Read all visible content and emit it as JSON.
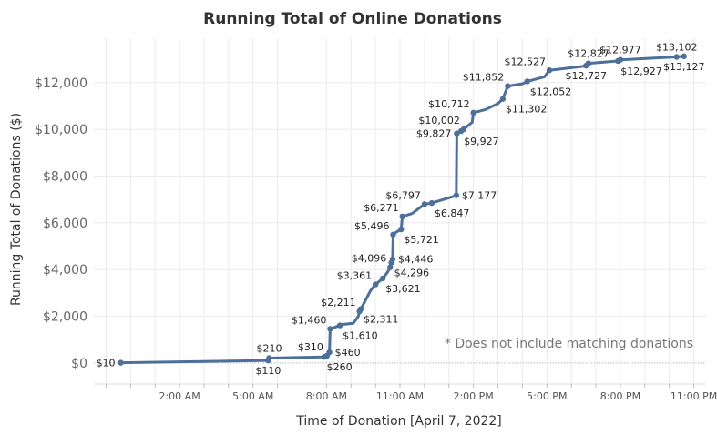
{
  "chart_data": {
    "type": "line",
    "title": "Running Total of Online Donations",
    "xlabel": "Time of Donation [April 7, 2022]",
    "ylabel": "Running Total of Donations ($)",
    "note": "* Does not include matching donations",
    "ylim": [
      -900,
      13900
    ],
    "xlim": [
      -1.5,
      23.5
    ],
    "x_ticks": [
      {
        "x": 2,
        "label": "2:00 AM"
      },
      {
        "x": 5,
        "label": "5:00 AM"
      },
      {
        "x": 8,
        "label": "8:00 AM"
      },
      {
        "x": 11,
        "label": "11:00 AM"
      },
      {
        "x": 14,
        "label": "2:00 PM"
      },
      {
        "x": 17,
        "label": "5:00 PM"
      },
      {
        "x": 20,
        "label": "8:00 PM"
      },
      {
        "x": 23,
        "label": "11:00 PM"
      }
    ],
    "y_ticks": [
      {
        "y": 0,
        "label": "$0"
      },
      {
        "y": 2000,
        "label": "$2,000"
      },
      {
        "y": 4000,
        "label": "$4,000"
      },
      {
        "y": 6000,
        "label": "$6,000"
      },
      {
        "y": 8000,
        "label": "$8,000"
      },
      {
        "y": 10000,
        "label": "$10,000"
      },
      {
        "y": 12000,
        "label": "$12,000"
      }
    ],
    "grid": true,
    "color": "#4e6f9a",
    "series": [
      {
        "points": [
          {
            "x": -0.4,
            "y": 10,
            "label": "$10",
            "lpos": "left"
          },
          {
            "x": 5.62,
            "y": 110,
            "label": "$110",
            "lpos": "below"
          },
          {
            "x": 5.66,
            "y": 210,
            "label": "$210",
            "lpos": "above"
          },
          {
            "x": 7.9,
            "y": 260,
            "label": "$260",
            "lpos": "below-right"
          },
          {
            "x": 8.02,
            "y": 310,
            "label": "$310",
            "lpos": "above-left"
          },
          {
            "x": 8.12,
            "y": 460,
            "label": "$460",
            "lpos": "right"
          },
          {
            "x": 8.15,
            "y": 1460,
            "label": "$1,460",
            "lpos": "above-left"
          },
          {
            "x": 8.55,
            "y": 1610,
            "label": "$1,610",
            "lpos": "below-right"
          },
          {
            "x": 8.65,
            "y": 1650,
            "label": "",
            "lpos": "none"
          },
          {
            "x": 9.1,
            "y": 1700,
            "label": "",
            "lpos": "none"
          },
          {
            "x": 9.3,
            "y": 2000,
            "label": "",
            "lpos": "none"
          },
          {
            "x": 9.35,
            "y": 2211,
            "label": "$2,211",
            "lpos": "above-left"
          },
          {
            "x": 9.4,
            "y": 2311,
            "label": "$2,311",
            "lpos": "below-right"
          },
          {
            "x": 9.6,
            "y": 2700,
            "label": "",
            "lpos": "none"
          },
          {
            "x": 9.8,
            "y": 3100,
            "label": "",
            "lpos": "none"
          },
          {
            "x": 10.0,
            "y": 3361,
            "label": "$3,361",
            "lpos": "above-left"
          },
          {
            "x": 10.3,
            "y": 3621,
            "label": "$3,621",
            "lpos": "below-right"
          },
          {
            "x": 10.5,
            "y": 3900,
            "label": "",
            "lpos": "none"
          },
          {
            "x": 10.6,
            "y": 4096,
            "label": "$4,096",
            "lpos": "above-left"
          },
          {
            "x": 10.65,
            "y": 4296,
            "label": "$4,296",
            "lpos": "below-right"
          },
          {
            "x": 10.7,
            "y": 4446,
            "label": "$4,446",
            "lpos": "right"
          },
          {
            "x": 10.72,
            "y": 5496,
            "label": "$5,496",
            "lpos": "above-left"
          },
          {
            "x": 10.85,
            "y": 5600,
            "label": "",
            "lpos": "none"
          },
          {
            "x": 11.05,
            "y": 5721,
            "label": "$5,721",
            "lpos": "below-right"
          },
          {
            "x": 11.1,
            "y": 6271,
            "label": "$6,271",
            "lpos": "above-left"
          },
          {
            "x": 11.5,
            "y": 6400,
            "label": "",
            "lpos": "none"
          },
          {
            "x": 12.0,
            "y": 6797,
            "label": "$6,797",
            "lpos": "above-left"
          },
          {
            "x": 12.3,
            "y": 6847,
            "label": "$6,847",
            "lpos": "below-right"
          },
          {
            "x": 13.1,
            "y": 7100,
            "label": "",
            "lpos": "none"
          },
          {
            "x": 13.3,
            "y": 7177,
            "label": "$7,177",
            "lpos": "right"
          },
          {
            "x": 13.32,
            "y": 9827,
            "label": "$9,827",
            "lpos": "left"
          },
          {
            "x": 13.5,
            "y": 9927,
            "label": "$9,927",
            "lpos": "below-right"
          },
          {
            "x": 13.6,
            "y": 10002,
            "label": "$10,002",
            "lpos": "above-left"
          },
          {
            "x": 13.95,
            "y": 10300,
            "label": "",
            "lpos": "none"
          },
          {
            "x": 14.0,
            "y": 10712,
            "label": "$10,712",
            "lpos": "above-left"
          },
          {
            "x": 14.5,
            "y": 10850,
            "label": "",
            "lpos": "none"
          },
          {
            "x": 15.0,
            "y": 11100,
            "label": "",
            "lpos": "none"
          },
          {
            "x": 15.2,
            "y": 11302,
            "label": "$11,302",
            "lpos": "below-right"
          },
          {
            "x": 15.4,
            "y": 11852,
            "label": "$11,852",
            "lpos": "above-left"
          },
          {
            "x": 16.0,
            "y": 11950,
            "label": "",
            "lpos": "none"
          },
          {
            "x": 16.2,
            "y": 12052,
            "label": "$12,052",
            "lpos": "below-right"
          },
          {
            "x": 16.9,
            "y": 12250,
            "label": "",
            "lpos": "none"
          },
          {
            "x": 17.1,
            "y": 12527,
            "label": "$12,527",
            "lpos": "above-left"
          },
          {
            "x": 18.5,
            "y": 12700,
            "label": "",
            "lpos": "none"
          },
          {
            "x": 18.6,
            "y": 12727,
            "label": "$12,727",
            "lpos": "below"
          },
          {
            "x": 18.7,
            "y": 12827,
            "label": "$12,827",
            "lpos": "above"
          },
          {
            "x": 19.9,
            "y": 12927,
            "label": "$12,927",
            "lpos": "below-right"
          },
          {
            "x": 20.0,
            "y": 12977,
            "label": "$12,977",
            "lpos": "above"
          },
          {
            "x": 22.3,
            "y": 13102,
            "label": "$13,102",
            "lpos": "above"
          },
          {
            "x": 22.6,
            "y": 13127,
            "label": "$13,127",
            "lpos": "below"
          }
        ]
      }
    ]
  }
}
